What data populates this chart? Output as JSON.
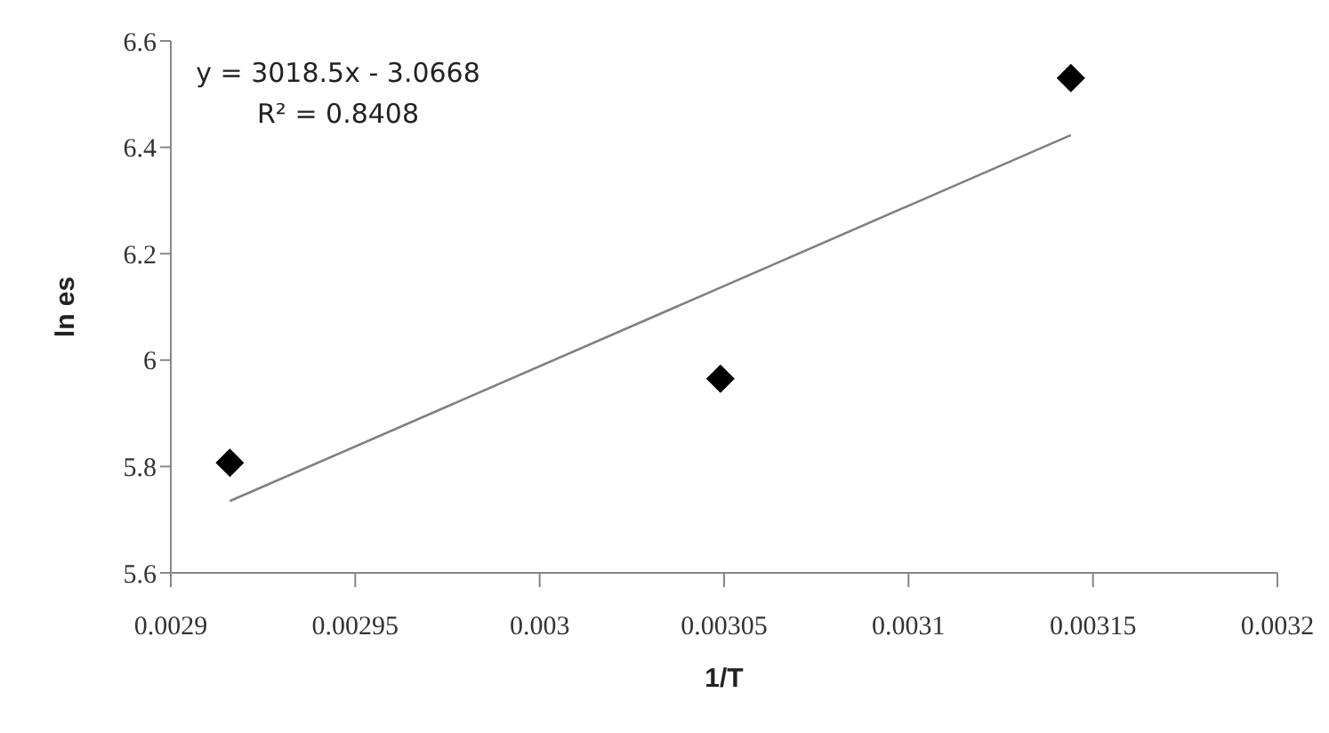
{
  "chart_data": {
    "type": "scatter",
    "xlabel": "1/T",
    "ylabel": "ln es",
    "annotations": [
      "y = 3018.5x - 3.0668",
      "R² = 0.8408"
    ],
    "series": [
      {
        "color": "#000000",
        "marker": "diamond",
        "x": [
          0.002916,
          0.003049,
          0.003144
        ],
        "values": [
          5.807,
          5.965,
          6.53
        ]
      },
      {
        "type": "line",
        "color": "#808080",
        "marker": "none",
        "x": [
          0.002916,
          0.003144
        ],
        "values": [
          5.735,
          6.423
        ]
      }
    ],
    "xlim": [
      0.0029,
      0.0032
    ],
    "xticks": [
      0.0029,
      0.00295,
      0.003,
      0.00305,
      0.0031,
      0.00315,
      0.0032
    ],
    "ylim": [
      5.6,
      6.6
    ],
    "yticks": [
      5.6,
      5.8,
      6,
      6.2,
      6.4,
      6.6
    ],
    "grid": false,
    "legend": false
  }
}
